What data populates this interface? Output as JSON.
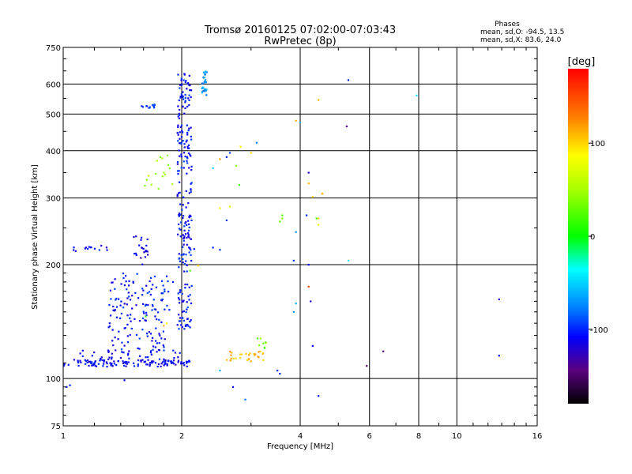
{
  "header": {
    "title_line1": "Tromsø 20160125 07:02:00-07:03:43",
    "title_line2": "RwPretec (8p)",
    "phases_label": "Phases",
    "stats_o": "mean, sd,O: -94.5, 13.5",
    "stats_x": "mean, sd,X:  83.6, 24.0"
  },
  "colorbar": {
    "label": "[deg]",
    "min": -180,
    "max": 180,
    "ticks": [
      100,
      0,
      -100
    ]
  },
  "chart_data": {
    "type": "scatter",
    "xlabel": "Frequency [MHz]",
    "ylabel": "Stationary phase Virtual Height [km]",
    "xscale": "log",
    "yscale": "log",
    "xlim": [
      1,
      16
    ],
    "ylim": [
      75,
      750
    ],
    "xticks": [
      1,
      2,
      4,
      6,
      8,
      10,
      16
    ],
    "yticks": [
      75,
      100,
      200,
      300,
      400,
      500,
      600,
      750
    ],
    "grid": true,
    "color_by": "phase (deg)",
    "clusters": [
      {
        "kind": "band",
        "f_from": 1.0,
        "f_to": 2.1,
        "h": 110,
        "jitter": 2.5,
        "n": 110,
        "phase": -110
      },
      {
        "kind": "band",
        "f_from": 1.1,
        "f_to": 2.0,
        "h": 114,
        "jitter": 5,
        "n": 50,
        "phase": -110
      },
      {
        "kind": "blob",
        "f_from": 1.3,
        "f_to": 1.85,
        "h_from": 118,
        "h_to": 190,
        "n": 150,
        "phase": -105
      },
      {
        "kind": "band",
        "f_from": 1.05,
        "f_to": 1.3,
        "h": 221,
        "jitter": 4,
        "n": 14,
        "phase": -110
      },
      {
        "kind": "blob",
        "f_from": 1.5,
        "f_to": 1.65,
        "h_from": 200,
        "h_to": 240,
        "n": 22,
        "phase": -115
      },
      {
        "kind": "column",
        "f_from": 1.95,
        "f_to": 2.12,
        "h_from": 135,
        "h_to": 650,
        "n": 240,
        "phase": -105
      },
      {
        "kind": "column",
        "f_from": 2.25,
        "f_to": 2.32,
        "h_from": 560,
        "h_to": 650,
        "n": 28,
        "phase": -70
      },
      {
        "kind": "band",
        "f_from": 1.58,
        "f_to": 1.72,
        "h": 525,
        "jitter": 6,
        "n": 14,
        "phase": -95
      },
      {
        "kind": "blob",
        "f_from": 1.6,
        "f_to": 1.9,
        "h_from": 310,
        "h_to": 390,
        "n": 16,
        "phase": 50
      },
      {
        "kind": "band",
        "f_from": 2.6,
        "f_to": 3.3,
        "h": 115,
        "jitter": 4,
        "n": 28,
        "phase": 110
      },
      {
        "kind": "blob",
        "f_from": 3.1,
        "f_to": 3.3,
        "h_from": 120,
        "h_to": 130,
        "n": 8,
        "phase": 30
      }
    ],
    "points": [
      {
        "x": 1.04,
        "y": 96,
        "phase": -100
      },
      {
        "x": 1.02,
        "y": 95,
        "phase": -100
      },
      {
        "x": 1.43,
        "y": 99,
        "phase": -110
      },
      {
        "x": 1.9,
        "y": 180,
        "phase": -100
      },
      {
        "x": 1.86,
        "y": 152,
        "phase": -100
      },
      {
        "x": 1.83,
        "y": 140,
        "phase": 90
      },
      {
        "x": 1.8,
        "y": 138,
        "phase": 110
      },
      {
        "x": 1.62,
        "y": 146,
        "phase": 20
      },
      {
        "x": 2.1,
        "y": 193,
        "phase": 20
      },
      {
        "x": 2.2,
        "y": 199,
        "phase": 100
      },
      {
        "x": 2.15,
        "y": 220,
        "phase": -105
      },
      {
        "x": 2.4,
        "y": 222,
        "phase": -100
      },
      {
        "x": 2.5,
        "y": 219,
        "phase": -95
      },
      {
        "x": 2.6,
        "y": 262,
        "phase": -95
      },
      {
        "x": 2.5,
        "y": 282,
        "phase": 80
      },
      {
        "x": 2.65,
        "y": 285,
        "phase": 70
      },
      {
        "x": 2.75,
        "y": 365,
        "phase": 40
      },
      {
        "x": 2.8,
        "y": 325,
        "phase": 20
      },
      {
        "x": 2.82,
        "y": 410,
        "phase": 90
      },
      {
        "x": 3.1,
        "y": 420,
        "phase": -80
      },
      {
        "x": 3.0,
        "y": 395,
        "phase": 100
      },
      {
        "x": 2.6,
        "y": 385,
        "phase": -100
      },
      {
        "x": 2.65,
        "y": 395,
        "phase": -90
      },
      {
        "x": 2.5,
        "y": 380,
        "phase": 120
      },
      {
        "x": 2.4,
        "y": 360,
        "phase": -50
      },
      {
        "x": 2.7,
        "y": 95,
        "phase": -110
      },
      {
        "x": 2.5,
        "y": 105,
        "phase": -60
      },
      {
        "x": 3.5,
        "y": 105,
        "phase": -100
      },
      {
        "x": 3.55,
        "y": 103,
        "phase": -100
      },
      {
        "x": 3.6,
        "y": 265,
        "phase": 40
      },
      {
        "x": 3.55,
        "y": 260,
        "phase": 30
      },
      {
        "x": 3.6,
        "y": 270,
        "phase": 20
      },
      {
        "x": 3.9,
        "y": 244,
        "phase": -70
      },
      {
        "x": 3.85,
        "y": 205,
        "phase": -95
      },
      {
        "x": 3.9,
        "y": 158,
        "phase": -60
      },
      {
        "x": 3.85,
        "y": 150,
        "phase": -70
      },
      {
        "x": 4.0,
        "y": 475,
        "phase": -60
      },
      {
        "x": 3.9,
        "y": 480,
        "phase": 110
      },
      {
        "x": 4.2,
        "y": 350,
        "phase": -120
      },
      {
        "x": 4.2,
        "y": 328,
        "phase": 110
      },
      {
        "x": 4.3,
        "y": 302,
        "phase": 100
      },
      {
        "x": 4.15,
        "y": 270,
        "phase": -100
      },
      {
        "x": 4.2,
        "y": 200,
        "phase": -110
      },
      {
        "x": 4.2,
        "y": 175,
        "phase": 150
      },
      {
        "x": 4.25,
        "y": 160,
        "phase": -120
      },
      {
        "x": 4.3,
        "y": 122,
        "phase": -110
      },
      {
        "x": 4.4,
        "y": 265,
        "phase": 20
      },
      {
        "x": 4.45,
        "y": 265,
        "phase": 100
      },
      {
        "x": 4.45,
        "y": 255,
        "phase": 80
      },
      {
        "x": 4.55,
        "y": 308,
        "phase": 110
      },
      {
        "x": 4.45,
        "y": 545,
        "phase": 110
      },
      {
        "x": 4.45,
        "y": 90,
        "phase": -110
      },
      {
        "x": 5.3,
        "y": 615,
        "phase": -100
      },
      {
        "x": 5.25,
        "y": 464,
        "phase": -140
      },
      {
        "x": 5.3,
        "y": 205,
        "phase": -40
      },
      {
        "x": 5.9,
        "y": 108,
        "phase": -150
      },
      {
        "x": 6.5,
        "y": 118,
        "phase": -150
      },
      {
        "x": 7.9,
        "y": 560,
        "phase": -40
      },
      {
        "x": 12.8,
        "y": 162,
        "phase": -120
      },
      {
        "x": 12.8,
        "y": 115,
        "phase": -110
      },
      {
        "x": 2.9,
        "y": 88,
        "phase": -80
      }
    ]
  }
}
